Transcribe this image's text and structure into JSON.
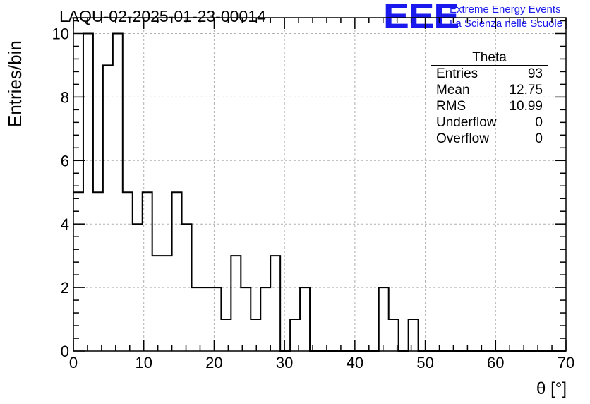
{
  "header": {
    "title": "LAQU-02-2025-01-23-00014",
    "logo_mark": "EEE",
    "logo_line1": "Extreme Energy Events",
    "logo_line2": "La Scienza nelle Scuole",
    "logo_color": "#1a1aee"
  },
  "stats_box": {
    "title": "Theta",
    "rows": [
      {
        "label": "Entries",
        "value": "93"
      },
      {
        "label": "Mean",
        "value": "12.75"
      },
      {
        "label": "RMS",
        "value": "10.99"
      },
      {
        "label": "Underflow",
        "value": "0"
      },
      {
        "label": "Overflow",
        "value": "0"
      }
    ]
  },
  "chart_data": {
    "type": "bar",
    "style": "step-histogram",
    "title": "LAQU-02-2025-01-23-00014",
    "xlabel": "θ [°]",
    "ylabel": "Entries/bin",
    "xlim": [
      0,
      70
    ],
    "ylim": [
      0,
      10.5
    ],
    "bin_width": 1.4,
    "bin_edges_start": 0,
    "values": [
      5,
      10,
      5,
      9,
      10,
      5,
      4,
      5,
      3,
      3,
      5,
      4,
      2,
      2,
      2,
      1,
      3,
      2,
      1,
      2,
      3,
      0,
      1,
      2,
      0,
      0,
      0,
      0,
      0,
      0,
      0,
      2,
      1,
      0,
      1,
      0,
      0,
      0,
      0,
      0,
      0,
      0,
      0,
      0,
      0,
      0,
      0,
      0,
      0,
      0
    ],
    "xticks": [
      0,
      10,
      20,
      30,
      40,
      50,
      60,
      70
    ],
    "yticks": [
      0,
      2,
      4,
      6,
      8,
      10
    ],
    "grid": true,
    "line_color": "#000000"
  }
}
